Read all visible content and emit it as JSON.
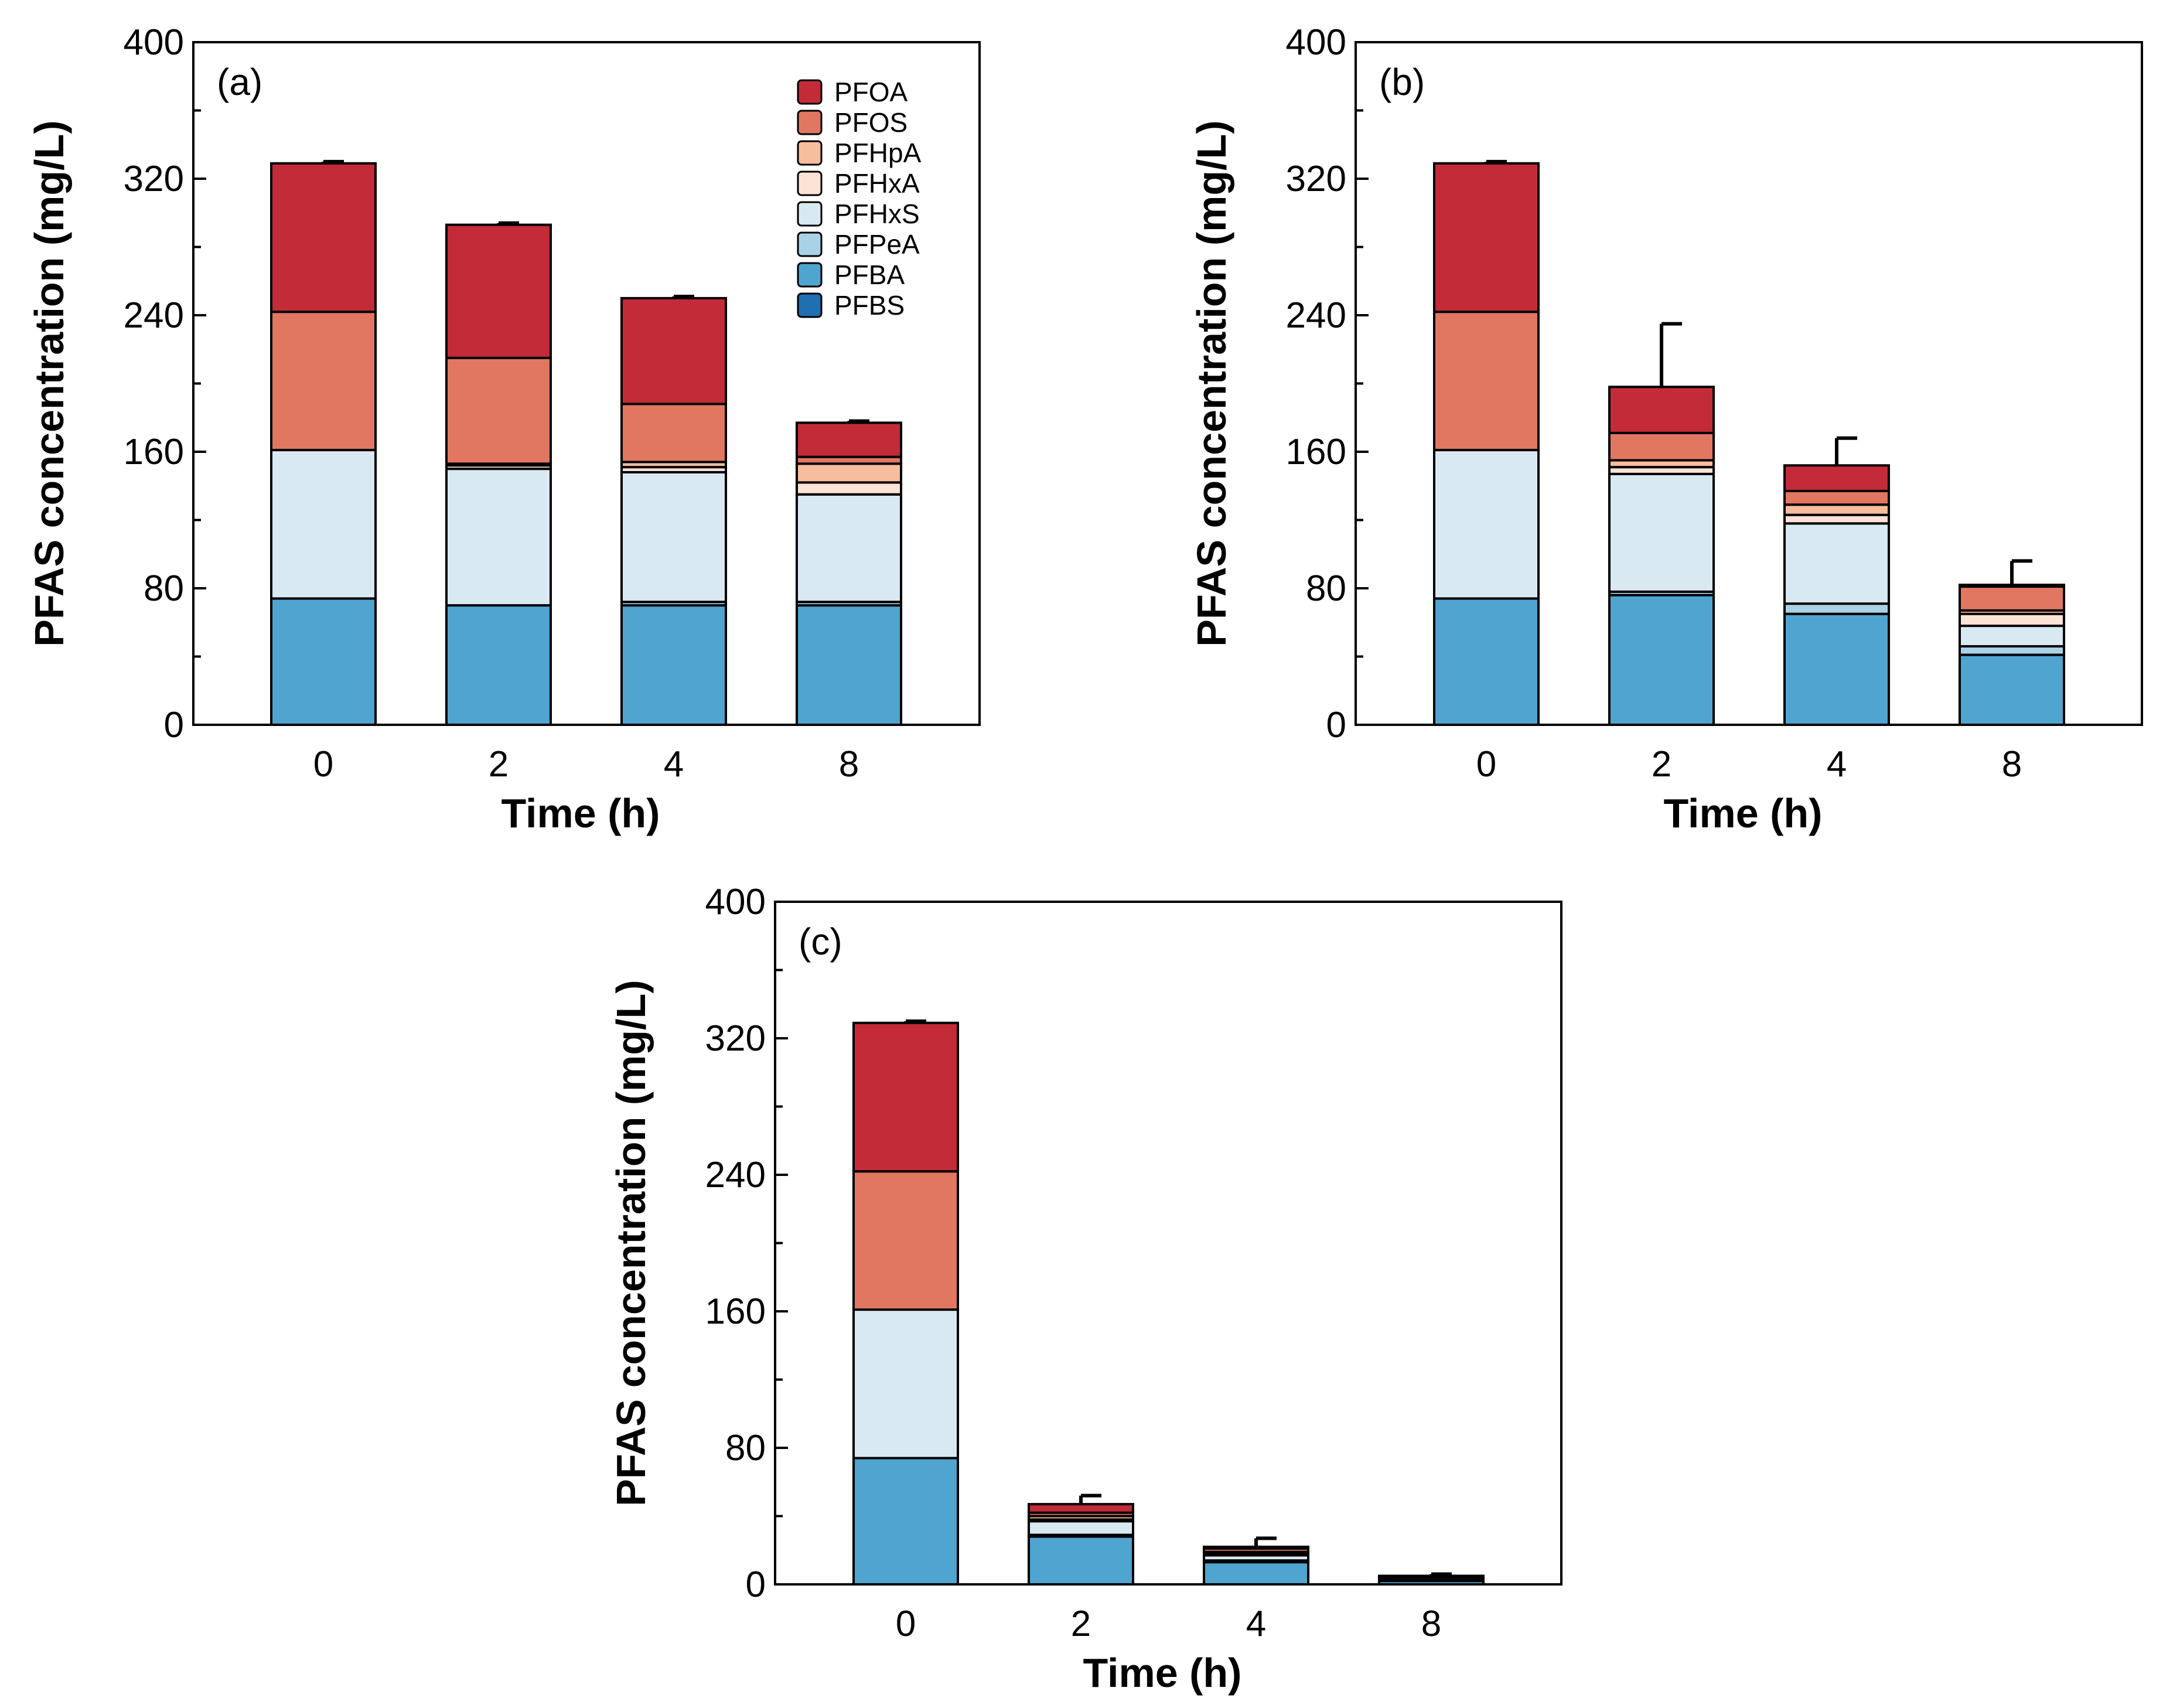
{
  "colors": {
    "PFOA": "#c32b39",
    "PFOS": "#e27761",
    "PFHpA": "#f8bd9d",
    "PFHxA": "#fde2d6",
    "PFHxS": "#d9e9f2",
    "PFPeA": "#a9d2e7",
    "PFBA": "#4fa4d0",
    "PFBS": "#1f6fb3"
  },
  "chart_data": [
    {
      "type": "bar",
      "stacked": true,
      "panel_label": "(a)",
      "xlabel": "Time (h)",
      "ylabel": "PFAS concentration (mg/L)",
      "ylim": [
        0,
        400
      ],
      "yticks": [
        "0",
        "80",
        "160",
        "240",
        "320",
        "400"
      ],
      "categories": [
        "0",
        "2",
        "4",
        "8"
      ],
      "legend": {
        "position": "top-right",
        "entries": [
          "PFOA",
          "PFOS",
          "PFHpA",
          "PFHxA",
          "PFHxS",
          "PFPeA",
          "PFBA",
          "PFBS"
        ]
      },
      "series": [
        {
          "name": "PFBS",
          "values": [
            0,
            0,
            0,
            0
          ]
        },
        {
          "name": "PFBA",
          "values": [
            74,
            70,
            70,
            70
          ]
        },
        {
          "name": "PFPeA",
          "values": [
            0,
            0,
            2,
            2
          ]
        },
        {
          "name": "PFHxS",
          "values": [
            87,
            80,
            76,
            63
          ]
        },
        {
          "name": "PFHxA",
          "values": [
            0,
            2,
            3,
            7
          ]
        },
        {
          "name": "PFHpA",
          "values": [
            0,
            1,
            3,
            11
          ]
        },
        {
          "name": "PFOS",
          "values": [
            81,
            62,
            34,
            4
          ]
        },
        {
          "name": "PFOA",
          "values": [
            87,
            78,
            62,
            20
          ]
        }
      ],
      "totals": [
        329,
        293,
        250,
        177
      ],
      "error": [
        1,
        1,
        1,
        1
      ]
    },
    {
      "type": "bar",
      "stacked": true,
      "panel_label": "(b)",
      "xlabel": "Time (h)",
      "ylabel": "PFAS concentration (mg/L)",
      "ylim": [
        0,
        400
      ],
      "yticks": [
        "0",
        "80",
        "160",
        "240",
        "320",
        "400"
      ],
      "categories": [
        "0",
        "2",
        "4",
        "8"
      ],
      "series": [
        {
          "name": "PFBS",
          "values": [
            0,
            0,
            0,
            0
          ]
        },
        {
          "name": "PFBA",
          "values": [
            74,
            76,
            65,
            41
          ]
        },
        {
          "name": "PFPeA",
          "values": [
            0,
            2,
            6,
            5
          ]
        },
        {
          "name": "PFHxS",
          "values": [
            87,
            69,
            47,
            12
          ]
        },
        {
          "name": "PFHxA",
          "values": [
            0,
            4,
            5,
            7
          ]
        },
        {
          "name": "PFHpA",
          "values": [
            0,
            4,
            6,
            2
          ]
        },
        {
          "name": "PFOS",
          "values": [
            81,
            16,
            8,
            14
          ]
        },
        {
          "name": "PFOA",
          "values": [
            87,
            27,
            15,
            1
          ]
        }
      ],
      "totals": [
        329,
        198,
        152,
        82
      ],
      "error": [
        1,
        37,
        16,
        14
      ]
    },
    {
      "type": "bar",
      "stacked": true,
      "panel_label": "(c)",
      "xlabel": "Time (h)",
      "ylabel": "PFAS concentration (mg/L)",
      "ylim": [
        0,
        400
      ],
      "yticks": [
        "0",
        "80",
        "160",
        "240",
        "320",
        "400"
      ],
      "categories": [
        "0",
        "2",
        "4",
        "8"
      ],
      "series": [
        {
          "name": "PFBS",
          "values": [
            0,
            0,
            0,
            0
          ]
        },
        {
          "name": "PFBA",
          "values": [
            74,
            28,
            13,
            2
          ]
        },
        {
          "name": "PFPeA",
          "values": [
            0,
            1,
            1,
            0.5
          ]
        },
        {
          "name": "PFHxS",
          "values": [
            87,
            8,
            3,
            1
          ]
        },
        {
          "name": "PFHxA",
          "values": [
            0,
            1,
            1,
            0.5
          ]
        },
        {
          "name": "PFHpA",
          "values": [
            0,
            2,
            1,
            0
          ]
        },
        {
          "name": "PFOS",
          "values": [
            81,
            2,
            2,
            0.5
          ]
        },
        {
          "name": "PFOA",
          "values": [
            87,
            5,
            1,
            0.5
          ]
        }
      ],
      "totals": [
        329,
        47,
        22,
        5
      ],
      "error": [
        1,
        5,
        5,
        1
      ]
    }
  ]
}
